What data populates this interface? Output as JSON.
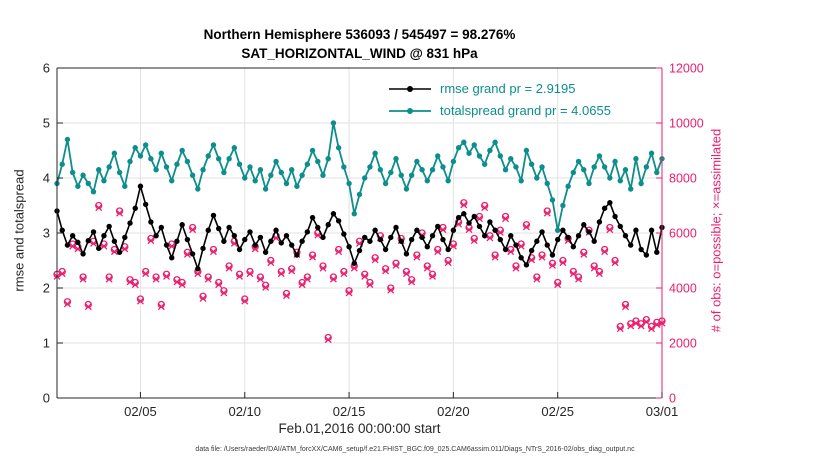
{
  "title_line1": "Northern Hemisphere 536093 / 545497 = 98.276%",
  "title_line2": "SAT_HORIZONTAL_WIND @ 831 hPa",
  "footer": "data file: /Users/raeder/DAI/ATM_forcXX/CAM6_setup/f.e21.FHIST_BGC.f09_025.CAM6assim.011/Diags_NTrS_2016-02/obs_diag_output.nc",
  "legend": {
    "rmse_label": "rmse grand pr = 2.9195",
    "totalspread_label": "totalspread grand pr = 4.0655"
  },
  "chart_data": {
    "type": "line",
    "title": [
      "Northern Hemisphere 536093 / 545497 = 98.276%",
      "SAT_HORIZONTAL_WIND @ 831 hPa"
    ],
    "xlabel": "Feb.01,2016 00:00:00 start",
    "ylabel_left": "rmse and totalspread",
    "ylabel_right": "# of obs: o=possible; ×=assimilated",
    "x_range": [
      0,
      29
    ],
    "x_step": 0.25,
    "y_left_range": [
      0,
      6
    ],
    "y_right_range": [
      0,
      12000
    ],
    "x_ticks": {
      "days": [
        4,
        9,
        14,
        19,
        24,
        29
      ],
      "labels": [
        "02/05",
        "02/10",
        "02/15",
        "02/20",
        "02/25",
        "03/01"
      ]
    },
    "y_left_ticks": [
      0,
      1,
      2,
      3,
      4,
      5,
      6
    ],
    "y_right_ticks": [
      0,
      2000,
      4000,
      6000,
      8000,
      10000,
      12000
    ],
    "grid": true,
    "legend_position": "top-inside",
    "colors": {
      "rmse": "#000000",
      "totalspread": "#0c8e8c",
      "obs": "#ec1d6f",
      "grid": "#e2e2e2",
      "axis": "#262626"
    },
    "series": [
      {
        "name": "rmse",
        "axis": "left",
        "marker": "dot",
        "grand_mean": 2.9195,
        "values": [
          3.4,
          3.05,
          2.78,
          2.95,
          2.83,
          2.62,
          2.86,
          3.02,
          2.72,
          2.95,
          3.12,
          2.85,
          2.65,
          2.92,
          3.18,
          3.45,
          3.85,
          3.52,
          3.2,
          2.95,
          3.1,
          2.78,
          2.55,
          2.85,
          3.15,
          2.88,
          2.62,
          2.35,
          2.72,
          3.05,
          3.32,
          3.08,
          2.85,
          3.1,
          2.95,
          2.7,
          2.88,
          3.02,
          2.78,
          2.92,
          2.65,
          2.85,
          3.05,
          2.82,
          2.95,
          2.78,
          2.6,
          2.85,
          3.02,
          3.28,
          3.1,
          2.92,
          3.15,
          3.35,
          3.22,
          2.98,
          2.75,
          2.45,
          2.68,
          2.92,
          2.85,
          3.05,
          2.88,
          2.7,
          2.92,
          3.1,
          2.85,
          2.62,
          2.88,
          3.05,
          2.92,
          2.75,
          2.95,
          3.12,
          2.88,
          2.7,
          3.05,
          3.28,
          3.35,
          3.18,
          3.3,
          3.12,
          2.95,
          3.2,
          3.05,
          2.88,
          2.7,
          2.95,
          2.78,
          2.55,
          2.42,
          2.68,
          2.85,
          3.02,
          2.78,
          2.6,
          2.88,
          3.05,
          2.92,
          2.75,
          2.95,
          3.15,
          3.02,
          2.85,
          3.2,
          3.45,
          3.55,
          3.3,
          3.12,
          2.95,
          2.78,
          3.05,
          2.7,
          2.6,
          3.05,
          2.65,
          3.1
        ]
      },
      {
        "name": "totalspread",
        "axis": "left",
        "marker": "dot",
        "grand_mean": 4.0655,
        "values": [
          3.9,
          4.25,
          4.7,
          4.1,
          3.85,
          4.05,
          3.9,
          3.75,
          4.15,
          3.95,
          4.2,
          4.45,
          4.1,
          3.85,
          4.3,
          4.55,
          4.4,
          4.6,
          4.35,
          4.15,
          4.45,
          4.2,
          3.95,
          4.25,
          4.5,
          4.3,
          4.05,
          3.8,
          4.15,
          4.4,
          4.6,
          4.35,
          4.1,
          4.35,
          4.55,
          4.25,
          4.0,
          4.2,
          3.95,
          4.15,
          3.8,
          4.05,
          4.3,
          4.1,
          3.9,
          4.15,
          3.85,
          4.05,
          4.25,
          4.5,
          4.3,
          4.05,
          4.35,
          5.0,
          4.55,
          4.2,
          3.9,
          3.35,
          3.7,
          4.0,
          4.2,
          4.45,
          4.15,
          3.9,
          4.1,
          4.35,
          4.05,
          3.8,
          4.05,
          4.3,
          4.15,
          3.95,
          4.15,
          4.4,
          4.2,
          3.95,
          4.3,
          4.55,
          4.65,
          4.45,
          4.6,
          4.4,
          4.25,
          4.5,
          4.65,
          4.4,
          4.15,
          4.35,
          4.2,
          3.95,
          4.5,
          4.25,
          4.0,
          4.2,
          3.9,
          3.6,
          3.05,
          3.5,
          3.85,
          4.1,
          4.3,
          4.15,
          3.9,
          4.2,
          4.4,
          4.2,
          4.0,
          4.3,
          3.95,
          4.15,
          3.8,
          4.35,
          3.9,
          4.2,
          4.45,
          4.1,
          4.35
        ]
      },
      {
        "name": "obs_possible",
        "axis": "right",
        "marker": "circle",
        "values": [
          4500,
          4600,
          3500,
          5600,
          5500,
          4400,
          3400,
          5700,
          7000,
          5600,
          4400,
          5400,
          6800,
          5500,
          4300,
          4200,
          3600,
          4600,
          5800,
          4400,
          3400,
          4500,
          5600,
          4300,
          4200,
          5300,
          6200,
          4600,
          3700,
          4400,
          5400,
          4200,
          3900,
          4800,
          5700,
          4500,
          3600,
          4600,
          5500,
          4400,
          4100,
          5000,
          5900,
          4600,
          3800,
          4700,
          5300,
          4200,
          4400,
          5200,
          6000,
          4800,
          2200,
          4400,
          5400,
          4600,
          3900,
          4800,
          5700,
          4500,
          4200,
          5100,
          5900,
          4700,
          4000,
          4900,
          5800,
          4600,
          4300,
          5200,
          6000,
          4800,
          4500,
          5400,
          6200,
          5000,
          5600,
          6400,
          7100,
          6200,
          5800,
          6600,
          7000,
          5900,
          5200,
          6100,
          6600,
          5400,
          4800,
          5600,
          6300,
          5100,
          4400,
          5200,
          6800,
          4900,
          4200,
          5000,
          5800,
          4600,
          4400,
          5300,
          6100,
          4800,
          4600,
          5400,
          6200,
          5000,
          2600,
          3400,
          2700,
          2800,
          2700,
          2850,
          2600,
          2750,
          2800
        ]
      },
      {
        "name": "obs_assimilated",
        "axis": "right",
        "marker": "x",
        "values": [
          4420,
          4520,
          3420,
          5520,
          5420,
          4320,
          3320,
          5620,
          6920,
          5520,
          4320,
          5320,
          6720,
          5420,
          4220,
          4120,
          3520,
          4520,
          5720,
          4320,
          3320,
          4420,
          5520,
          4220,
          4120,
          5220,
          6120,
          4520,
          3620,
          4320,
          5320,
          4120,
          3820,
          4720,
          5620,
          4420,
          3520,
          4520,
          5420,
          4320,
          4020,
          4920,
          5820,
          4520,
          3720,
          4620,
          5220,
          4120,
          4320,
          5120,
          5920,
          4720,
          2120,
          4320,
          5320,
          4520,
          3820,
          4720,
          5620,
          4420,
          4120,
          5020,
          5820,
          4620,
          3920,
          4820,
          5720,
          4520,
          4220,
          5120,
          5920,
          4720,
          4420,
          5320,
          6120,
          4920,
          5520,
          6320,
          7020,
          6120,
          5720,
          6520,
          6920,
          5820,
          5120,
          6020,
          6520,
          5320,
          4720,
          5520,
          6220,
          5020,
          4320,
          5120,
          6720,
          4820,
          4120,
          4920,
          5720,
          4520,
          4320,
          5220,
          6020,
          4720,
          4520,
          5320,
          6120,
          4920,
          2520,
          3320,
          2620,
          2720,
          2620,
          2770,
          2520,
          2670,
          2720
        ]
      }
    ]
  }
}
